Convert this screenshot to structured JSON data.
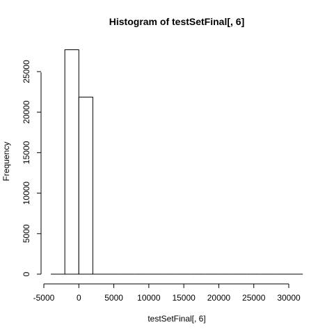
{
  "chart_data": {
    "type": "bar",
    "title": "Histogram of testSetFinal[, 6]",
    "xlabel": "testSetFinal[, 6]",
    "ylabel": "Frequency",
    "xlim": [
      -5000,
      30000
    ],
    "ylim": [
      0,
      27700
    ],
    "x_ticks": [
      -5000,
      0,
      5000,
      10000,
      15000,
      20000,
      25000,
      30000
    ],
    "x_tick_labels": [
      "-5000",
      "0",
      "5000",
      "10000",
      "15000",
      "20000",
      "25000",
      "30000"
    ],
    "y_ticks": [
      0,
      5000,
      10000,
      15000,
      20000,
      25000
    ],
    "y_tick_labels": [
      "0",
      "5000",
      "10000",
      "15000",
      "20000",
      "25000"
    ],
    "bin_edges": [
      -4000,
      -2000,
      0,
      2000,
      4000,
      6000,
      8000,
      10000,
      12000,
      14000,
      16000,
      18000,
      20000,
      22000,
      24000,
      26000,
      28000,
      30000,
      32000
    ],
    "values": [
      0,
      27700,
      21850,
      0,
      0,
      0,
      0,
      0,
      0,
      0,
      0,
      0,
      0,
      0,
      0,
      0,
      0,
      0
    ],
    "grid": false,
    "legend": "none"
  }
}
